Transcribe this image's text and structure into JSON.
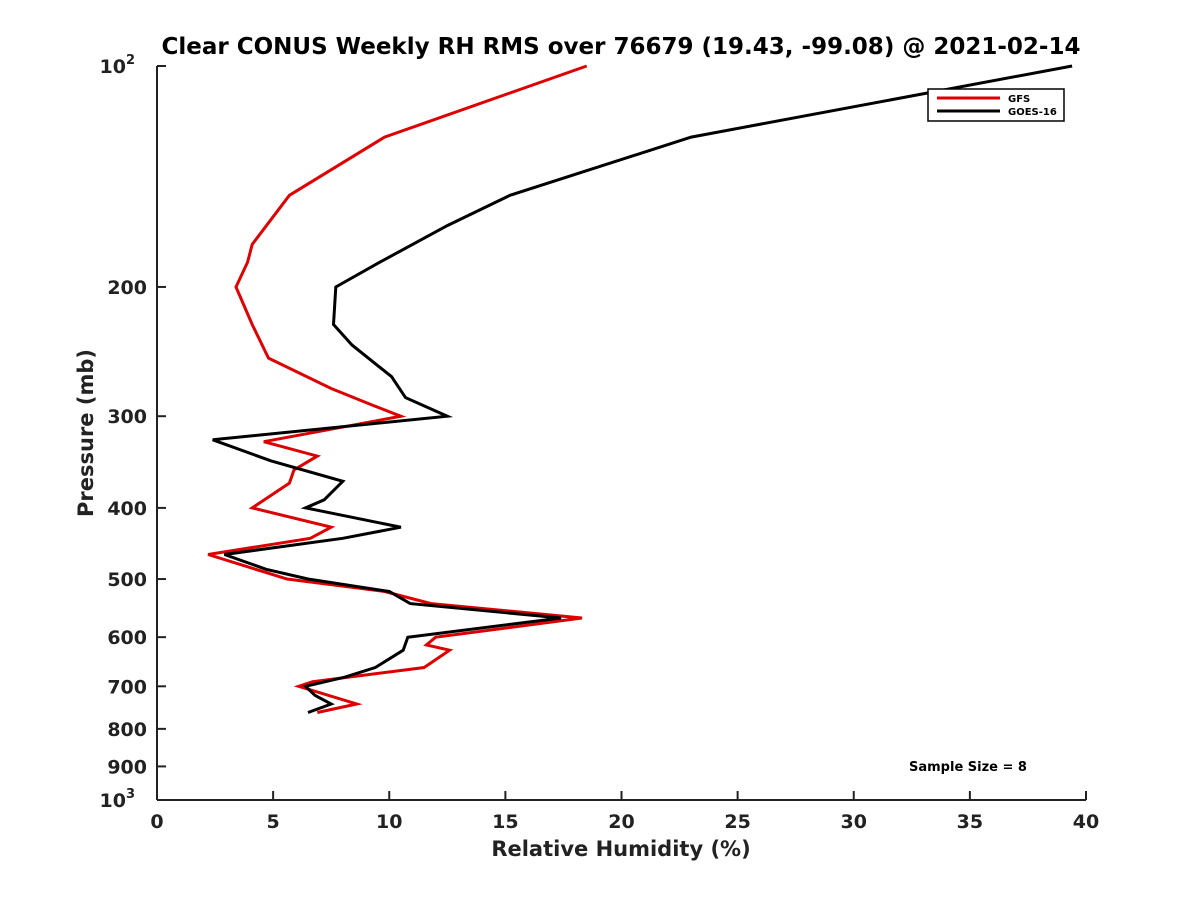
{
  "chart_data": {
    "type": "line",
    "title": "Clear CONUS Weekly RH RMS over 76679 (19.43, -99.08) @ 2021-02-14",
    "xlabel": "Relative Humidity (%)",
    "ylabel": "Pressure (mb)",
    "xlim": [
      0,
      40
    ],
    "ylim": [
      100,
      1000
    ],
    "yscale": "log",
    "yaxis_reversed": true,
    "grid": false,
    "x_ticks": [
      0,
      5,
      10,
      15,
      20,
      25,
      30,
      35,
      40
    ],
    "y_ticks": [
      {
        "value": 100,
        "label": "10",
        "sup": "2"
      },
      {
        "value": 200,
        "label": "200",
        "sup": ""
      },
      {
        "value": 300,
        "label": "300",
        "sup": ""
      },
      {
        "value": 400,
        "label": "400",
        "sup": ""
      },
      {
        "value": 500,
        "label": "500",
        "sup": ""
      },
      {
        "value": 600,
        "label": "600",
        "sup": ""
      },
      {
        "value": 700,
        "label": "700",
        "sup": ""
      },
      {
        "value": 800,
        "label": "800",
        "sup": ""
      },
      {
        "value": 900,
        "label": "900",
        "sup": ""
      },
      {
        "value": 1000,
        "label": "10",
        "sup": "3"
      }
    ],
    "legend_position": "top-right",
    "series": [
      {
        "name": "GFS",
        "color": "#dd0000",
        "points": [
          [
            18.5,
            100
          ],
          [
            9.8,
            125
          ],
          [
            5.7,
            150
          ],
          [
            4.1,
            175
          ],
          [
            3.9,
            185
          ],
          [
            3.4,
            200
          ],
          [
            4.1,
            225
          ],
          [
            4.8,
            250
          ],
          [
            7.5,
            275
          ],
          [
            9.3,
            290
          ],
          [
            10.5,
            300
          ],
          [
            4.6,
            325
          ],
          [
            6.9,
            340
          ],
          [
            5.9,
            355
          ],
          [
            5.7,
            370
          ],
          [
            4.1,
            400
          ],
          [
            7.5,
            425
          ],
          [
            6.6,
            440
          ],
          [
            2.2,
            463
          ],
          [
            4.7,
            490
          ],
          [
            5.6,
            500
          ],
          [
            9.8,
            520
          ],
          [
            11.8,
            540
          ],
          [
            18.3,
            565
          ],
          [
            12.0,
            600
          ],
          [
            11.6,
            615
          ],
          [
            12.6,
            625
          ],
          [
            11.5,
            660
          ],
          [
            6.7,
            690
          ],
          [
            6.1,
            700
          ],
          [
            8.6,
            740
          ],
          [
            6.9,
            760
          ]
        ]
      },
      {
        "name": "GOES-16",
        "color": "#000000",
        "points": [
          [
            39.4,
            100
          ],
          [
            23.0,
            125
          ],
          [
            15.2,
            150
          ],
          [
            12.5,
            165
          ],
          [
            9.6,
            185
          ],
          [
            7.7,
            200
          ],
          [
            7.6,
            225
          ],
          [
            8.4,
            240
          ],
          [
            10.1,
            265
          ],
          [
            10.7,
            283
          ],
          [
            12.5,
            300
          ],
          [
            2.4,
            323
          ],
          [
            4.9,
            345
          ],
          [
            8.0,
            368
          ],
          [
            7.2,
            390
          ],
          [
            6.4,
            400
          ],
          [
            10.5,
            425
          ],
          [
            8.0,
            440
          ],
          [
            2.9,
            463
          ],
          [
            4.7,
            485
          ],
          [
            6.5,
            500
          ],
          [
            10.0,
            520
          ],
          [
            10.9,
            540
          ],
          [
            17.4,
            565
          ],
          [
            10.8,
            600
          ],
          [
            10.6,
            625
          ],
          [
            9.4,
            660
          ],
          [
            8.1,
            680
          ],
          [
            6.4,
            700
          ],
          [
            6.8,
            720
          ],
          [
            7.5,
            740
          ],
          [
            6.5,
            760
          ]
        ]
      }
    ],
    "annotation": "Sample Size = 8"
  }
}
